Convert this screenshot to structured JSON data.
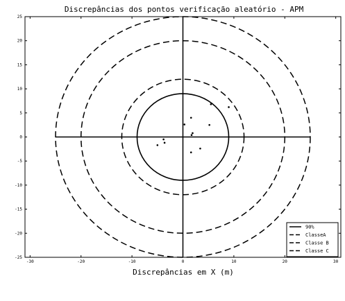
{
  "chart_data": {
    "type": "scatter",
    "title": "Discrepâncias dos pontos verificação aleatório - APM",
    "xlabel": "Discrepâncias em X (m)",
    "ylabel": "",
    "xlim": [
      -31,
      31
    ],
    "ylim": [
      -25,
      25
    ],
    "xticks": [
      -30,
      -20,
      -10,
      0,
      10,
      20,
      30
    ],
    "xtick_labels": [
      "-30",
      "-20",
      "-10",
      "0",
      "10",
      "20",
      "30"
    ],
    "yticks": [
      25,
      20,
      15,
      10,
      5,
      0,
      -5,
      -10,
      -15,
      -20,
      -25
    ],
    "ytick_labels": [
      "25",
      "20",
      "15",
      "10",
      "5",
      "0",
      "-5",
      "-10",
      "-15",
      "-20",
      "-25"
    ],
    "grid": false,
    "legend_position": "bottom-right",
    "axes_cross": {
      "x": 0,
      "y": 0
    },
    "circles": [
      {
        "name": "90%",
        "radius": 9,
        "style": "solid"
      },
      {
        "name": "ClasseA",
        "radius": 12,
        "style": "dashed"
      },
      {
        "name": "Classe B",
        "radius": 20,
        "style": "dashed"
      },
      {
        "name": "Classe C",
        "radius": 25,
        "style": "dashed"
      }
    ],
    "points": [
      {
        "x": 1.6,
        "y": 4.0
      },
      {
        "x": 0.3,
        "y": 2.6
      },
      {
        "x": 5.5,
        "y": 6.8
      },
      {
        "x": 9.0,
        "y": 6.2
      },
      {
        "x": 5.2,
        "y": 2.5
      },
      {
        "x": 1.9,
        "y": 0.8
      },
      {
        "x": 1.7,
        "y": 0.4
      },
      {
        "x": -3.8,
        "y": -0.5
      },
      {
        "x": -3.6,
        "y": -1.2
      },
      {
        "x": -5.0,
        "y": -1.7
      },
      {
        "x": 3.4,
        "y": -2.4
      },
      {
        "x": 1.6,
        "y": -3.2
      }
    ]
  }
}
